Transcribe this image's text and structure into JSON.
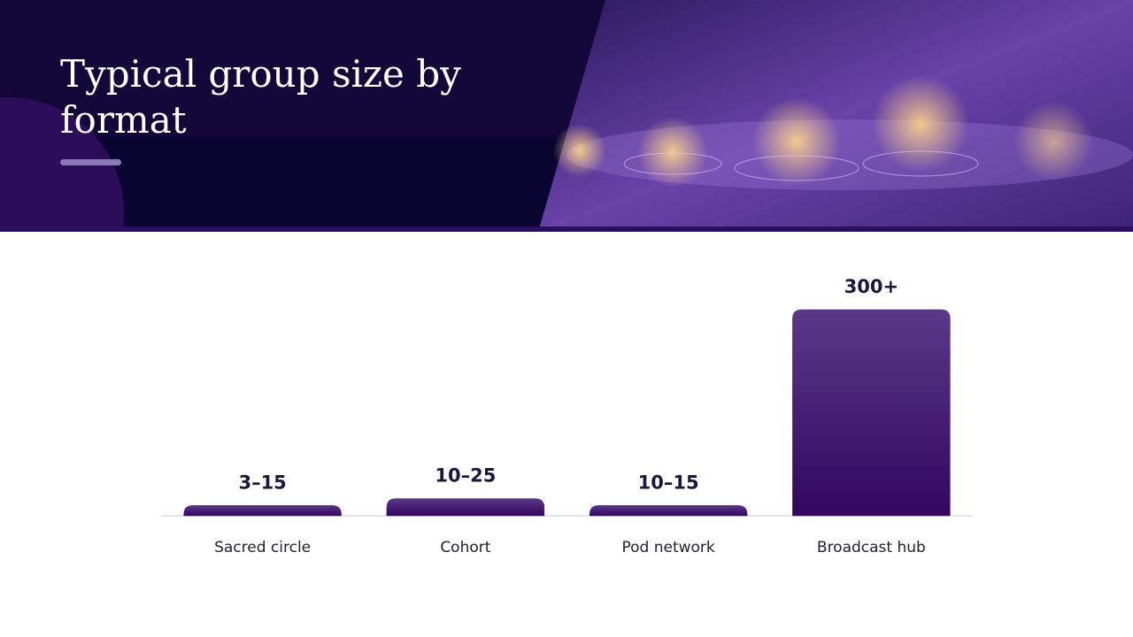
{
  "chart_data": {
    "type": "bar",
    "title": "Typical group size by format",
    "categories": [
      "Sacred circle",
      "Cohort",
      "Pod network",
      "Broadcast hub"
    ],
    "values": [
      15,
      25,
      15,
      300
    ],
    "value_labels": [
      "3–15",
      "10–25",
      "10–15",
      "300+"
    ],
    "color": "#4a1f78",
    "ylim": [
      0,
      300
    ]
  }
}
